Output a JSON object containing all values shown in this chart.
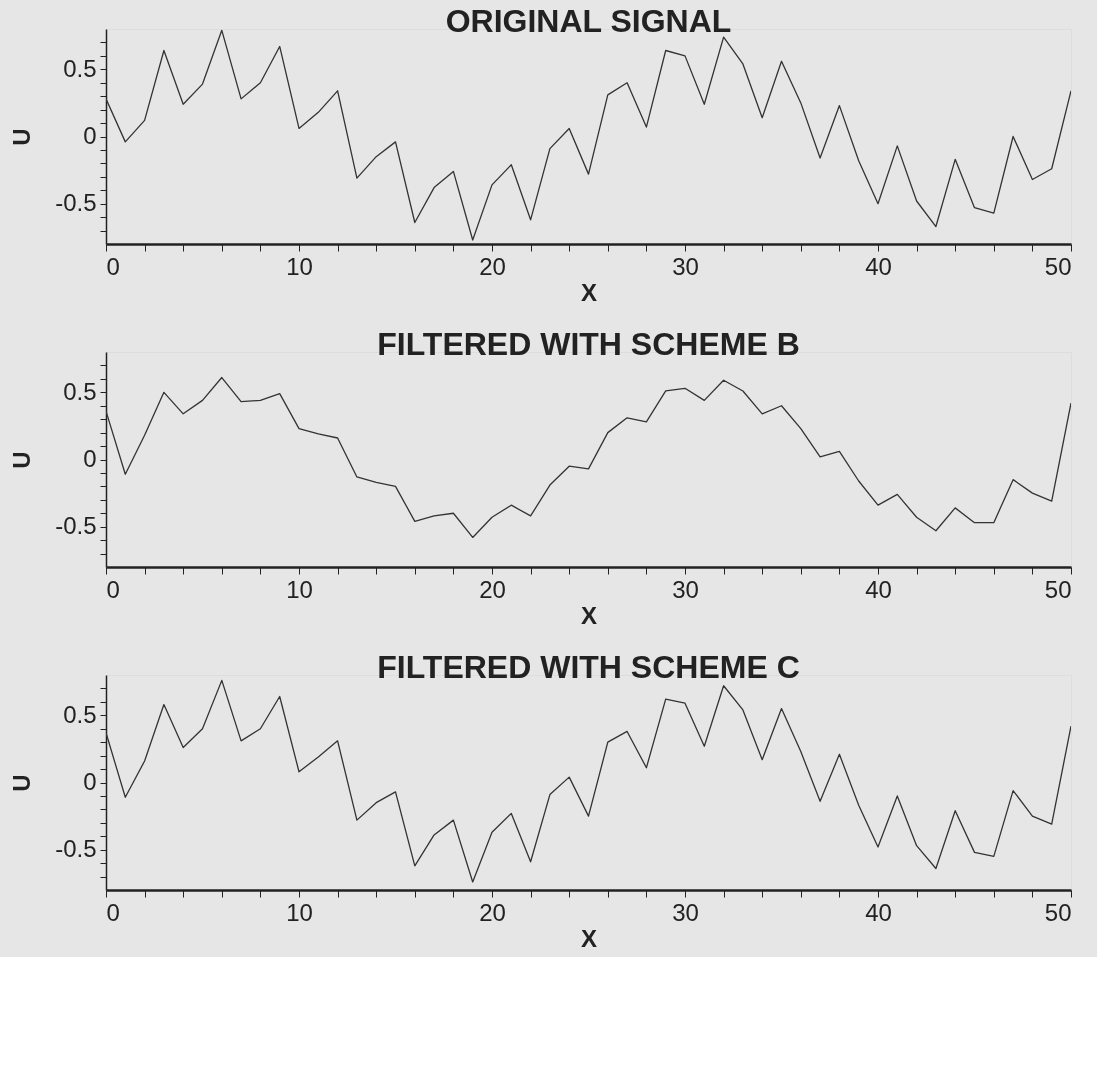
{
  "chart_data": [
    {
      "type": "line",
      "title": "ORIGINAL SIGNAL",
      "xlabel": "X",
      "ylabel": "U",
      "color": "#333333",
      "grid": false,
      "marker": "none",
      "line_style": "solid",
      "x": [
        0,
        1,
        2,
        3,
        4,
        5,
        6,
        7,
        8,
        9,
        10,
        11,
        12,
        13,
        14,
        15,
        16,
        17,
        18,
        19,
        20,
        21,
        22,
        23,
        24,
        25,
        26,
        27,
        28,
        29,
        30,
        31,
        32,
        33,
        34,
        35,
        36,
        37,
        38,
        39,
        40,
        41,
        42,
        43,
        44,
        45,
        46,
        47,
        48,
        49,
        50
      ],
      "values": [
        0.28,
        -0.04,
        0.12,
        0.64,
        0.24,
        0.39,
        0.79,
        0.28,
        0.4,
        0.67,
        0.06,
        0.18,
        0.34,
        -0.31,
        -0.15,
        -0.04,
        -0.64,
        -0.38,
        -0.26,
        -0.77,
        -0.36,
        -0.21,
        -0.62,
        -0.09,
        0.06,
        -0.28,
        0.31,
        0.4,
        0.07,
        0.64,
        0.6,
        0.24,
        0.74,
        0.54,
        0.14,
        0.56,
        0.25,
        -0.16,
        0.23,
        -0.18,
        -0.5,
        -0.07,
        -0.48,
        -0.67,
        -0.17,
        -0.53,
        -0.57,
        0.0,
        -0.32,
        -0.24,
        0.34
      ],
      "xlim": [
        0,
        50
      ],
      "ylim": [
        -0.8,
        0.8
      ],
      "xticks": [
        0,
        {
          "value": 2,
          "label": null
        },
        {
          "value": 4,
          "label": null
        },
        {
          "value": 6,
          "label": null
        },
        {
          "value": 8,
          "label": null
        },
        10,
        {
          "value": 12,
          "label": null
        },
        {
          "value": 14,
          "label": null
        },
        {
          "value": 16,
          "label": null
        },
        {
          "value": 18,
          "label": null
        },
        20,
        {
          "value": 22,
          "label": null
        },
        {
          "value": 24,
          "label": null
        },
        {
          "value": 26,
          "label": null
        },
        {
          "value": 28,
          "label": null
        },
        30,
        {
          "value": 32,
          "label": null
        },
        {
          "value": 34,
          "label": null
        },
        {
          "value": 36,
          "label": null
        },
        {
          "value": 38,
          "label": null
        },
        40,
        {
          "value": 42,
          "label": null
        },
        {
          "value": 44,
          "label": null
        },
        {
          "value": 46,
          "label": null
        },
        {
          "value": 48,
          "label": null
        },
        50
      ],
      "yticks": [
        {
          "value": -0.7,
          "label": null
        },
        {
          "value": -0.6,
          "label": null
        },
        -0.5,
        {
          "value": -0.4,
          "label": null
        },
        {
          "value": -0.3,
          "label": null
        },
        {
          "value": -0.2,
          "label": null
        },
        {
          "value": -0.1,
          "label": null
        },
        0,
        {
          "value": 0.1,
          "label": null
        },
        {
          "value": 0.2,
          "label": null
        },
        {
          "value": 0.3,
          "label": null
        },
        {
          "value": 0.4,
          "label": null
        },
        0.5,
        {
          "value": 0.6,
          "label": null
        },
        {
          "value": 0.7,
          "label": null
        }
      ]
    },
    {
      "type": "line",
      "title": "FILTERED WITH SCHEME B",
      "xlabel": "X",
      "ylabel": "U",
      "color": "#333333",
      "grid": false,
      "marker": "none",
      "line_style": "solid",
      "x": [
        0,
        1,
        2,
        3,
        4,
        5,
        6,
        7,
        8,
        9,
        10,
        11,
        12,
        13,
        14,
        15,
        16,
        17,
        18,
        19,
        20,
        21,
        22,
        23,
        24,
        25,
        26,
        27,
        28,
        29,
        30,
        31,
        32,
        33,
        34,
        35,
        36,
        37,
        38,
        39,
        40,
        41,
        42,
        43,
        44,
        45,
        46,
        47,
        48,
        49,
        50
      ],
      "values": [
        0.36,
        -0.11,
        0.18,
        0.5,
        0.34,
        0.44,
        0.61,
        0.43,
        0.44,
        0.49,
        0.23,
        0.19,
        0.16,
        -0.13,
        -0.17,
        -0.2,
        -0.46,
        -0.42,
        -0.4,
        -0.58,
        -0.43,
        -0.34,
        -0.42,
        -0.19,
        -0.05,
        -0.07,
        0.2,
        0.31,
        0.28,
        0.51,
        0.53,
        0.44,
        0.59,
        0.51,
        0.34,
        0.4,
        0.23,
        0.02,
        0.06,
        -0.16,
        -0.34,
        -0.26,
        -0.43,
        -0.53,
        -0.36,
        -0.47,
        -0.47,
        -0.15,
        -0.25,
        -0.31,
        0.42
      ],
      "xlim": [
        0,
        50
      ],
      "ylim": [
        -0.8,
        0.8
      ],
      "xticks": [
        0,
        {
          "value": 2,
          "label": null
        },
        {
          "value": 4,
          "label": null
        },
        {
          "value": 6,
          "label": null
        },
        {
          "value": 8,
          "label": null
        },
        10,
        {
          "value": 12,
          "label": null
        },
        {
          "value": 14,
          "label": null
        },
        {
          "value": 16,
          "label": null
        },
        {
          "value": 18,
          "label": null
        },
        20,
        {
          "value": 22,
          "label": null
        },
        {
          "value": 24,
          "label": null
        },
        {
          "value": 26,
          "label": null
        },
        {
          "value": 28,
          "label": null
        },
        30,
        {
          "value": 32,
          "label": null
        },
        {
          "value": 34,
          "label": null
        },
        {
          "value": 36,
          "label": null
        },
        {
          "value": 38,
          "label": null
        },
        40,
        {
          "value": 42,
          "label": null
        },
        {
          "value": 44,
          "label": null
        },
        {
          "value": 46,
          "label": null
        },
        {
          "value": 48,
          "label": null
        },
        50
      ],
      "yticks": [
        {
          "value": -0.7,
          "label": null
        },
        {
          "value": -0.6,
          "label": null
        },
        -0.5,
        {
          "value": -0.4,
          "label": null
        },
        {
          "value": -0.3,
          "label": null
        },
        {
          "value": -0.2,
          "label": null
        },
        {
          "value": -0.1,
          "label": null
        },
        0,
        {
          "value": 0.1,
          "label": null
        },
        {
          "value": 0.2,
          "label": null
        },
        {
          "value": 0.3,
          "label": null
        },
        {
          "value": 0.4,
          "label": null
        },
        0.5,
        {
          "value": 0.6,
          "label": null
        },
        {
          "value": 0.7,
          "label": null
        }
      ]
    },
    {
      "type": "line",
      "title": "FILTERED WITH SCHEME C",
      "xlabel": "X",
      "ylabel": "U",
      "color": "#333333",
      "grid": false,
      "marker": "none",
      "line_style": "solid",
      "x": [
        0,
        1,
        2,
        3,
        4,
        5,
        6,
        7,
        8,
        9,
        10,
        11,
        12,
        13,
        14,
        15,
        16,
        17,
        18,
        19,
        20,
        21,
        22,
        23,
        24,
        25,
        26,
        27,
        28,
        29,
        30,
        31,
        32,
        33,
        34,
        35,
        36,
        37,
        38,
        39,
        40,
        41,
        42,
        43,
        44,
        45,
        46,
        47,
        48,
        49,
        50
      ],
      "values": [
        0.37,
        -0.11,
        0.16,
        0.58,
        0.26,
        0.4,
        0.76,
        0.31,
        0.4,
        0.64,
        0.08,
        0.19,
        0.31,
        -0.28,
        -0.15,
        -0.07,
        -0.62,
        -0.39,
        -0.28,
        -0.74,
        -0.37,
        -0.23,
        -0.59,
        -0.09,
        0.04,
        -0.25,
        0.3,
        0.38,
        0.11,
        0.62,
        0.59,
        0.27,
        0.72,
        0.54,
        0.17,
        0.55,
        0.23,
        -0.14,
        0.21,
        -0.17,
        -0.48,
        -0.1,
        -0.47,
        -0.64,
        -0.21,
        -0.52,
        -0.55,
        -0.06,
        -0.25,
        -0.31,
        0.42
      ],
      "xlim": [
        0,
        50
      ],
      "ylim": [
        -0.8,
        0.8
      ],
      "xticks": [
        0,
        {
          "value": 2,
          "label": null
        },
        {
          "value": 4,
          "label": null
        },
        {
          "value": 6,
          "label": null
        },
        {
          "value": 8,
          "label": null
        },
        10,
        {
          "value": 12,
          "label": null
        },
        {
          "value": 14,
          "label": null
        },
        {
          "value": 16,
          "label": null
        },
        {
          "value": 18,
          "label": null
        },
        20,
        {
          "value": 22,
          "label": null
        },
        {
          "value": 24,
          "label": null
        },
        {
          "value": 26,
          "label": null
        },
        {
          "value": 28,
          "label": null
        },
        30,
        {
          "value": 32,
          "label": null
        },
        {
          "value": 34,
          "label": null
        },
        {
          "value": 36,
          "label": null
        },
        {
          "value": 38,
          "label": null
        },
        40,
        {
          "value": 42,
          "label": null
        },
        {
          "value": 44,
          "label": null
        },
        {
          "value": 46,
          "label": null
        },
        {
          "value": 48,
          "label": null
        },
        50
      ],
      "yticks": [
        {
          "value": -0.7,
          "label": null
        },
        {
          "value": -0.6,
          "label": null
        },
        -0.5,
        {
          "value": -0.4,
          "label": null
        },
        {
          "value": -0.3,
          "label": null
        },
        {
          "value": -0.2,
          "label": null
        },
        {
          "value": -0.1,
          "label": null
        },
        0,
        {
          "value": 0.1,
          "label": null
        },
        {
          "value": 0.2,
          "label": null
        },
        {
          "value": 0.3,
          "label": null
        },
        {
          "value": 0.4,
          "label": null
        },
        0.5,
        {
          "value": 0.6,
          "label": null
        },
        {
          "value": 0.7,
          "label": null
        }
      ]
    }
  ]
}
